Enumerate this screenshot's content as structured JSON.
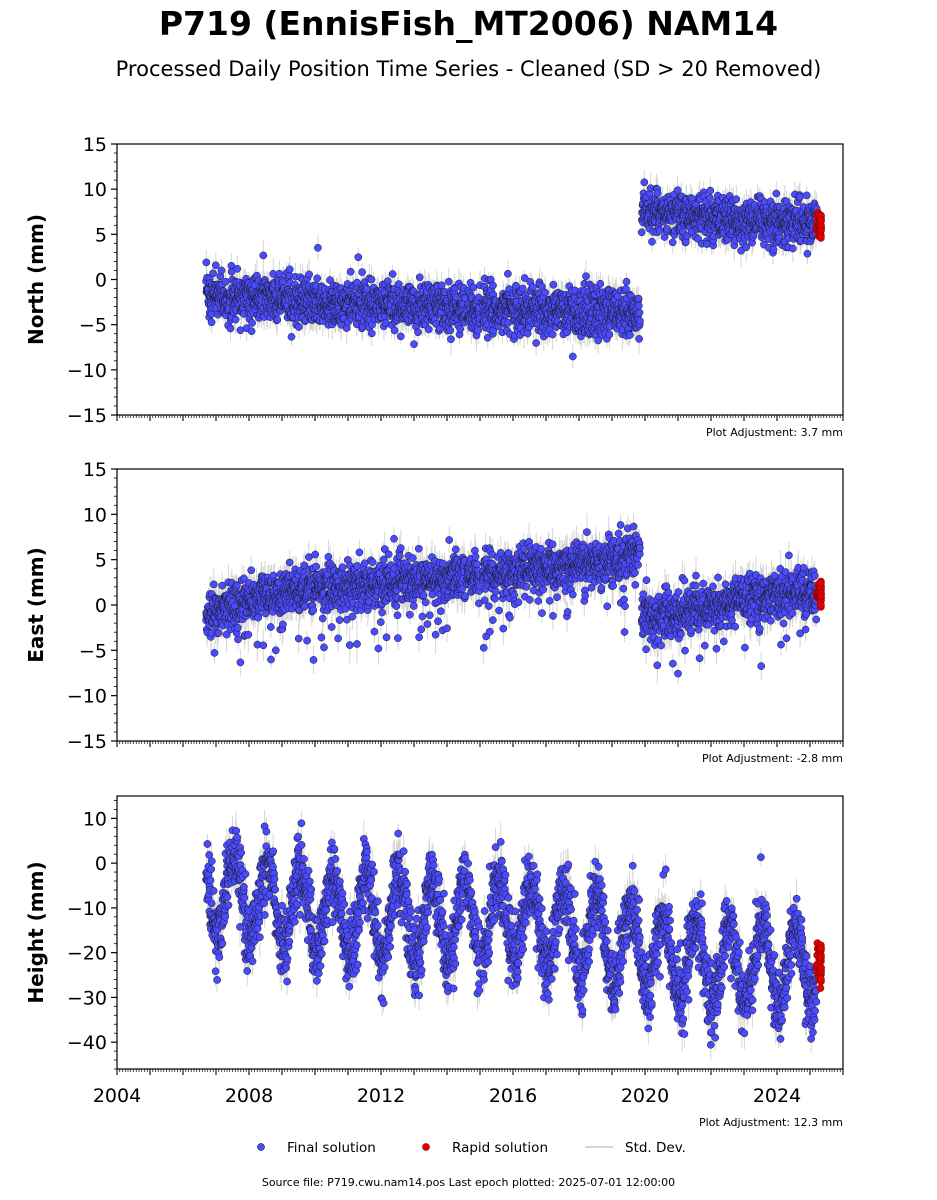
{
  "title": "P719 (EnnisFish_MT2006) NAM14",
  "subtitle": "Processed Daily Position Time Series - Cleaned (SD > 20 Removed)",
  "footer": "Source file: P719.cwu.nam14.pos  Last epoch plotted: 2025-07-01 12:00:00",
  "legend": {
    "final": "Final solution",
    "rapid": "Rapid solution",
    "sd": "Std. Dev."
  },
  "colors": {
    "final": "#4a4aff",
    "rapid": "#e00000",
    "sd": "#c8c8c8",
    "edge": "#1a1a1a"
  },
  "chart_data": [
    {
      "type": "scatter",
      "ylabel": "North (mm)",
      "ylim": [
        -15,
        15
      ],
      "yticks": [
        -15,
        -10,
        -5,
        0,
        5,
        10,
        15
      ],
      "xlim": [
        2004,
        2026
      ],
      "adjustment": "Plot Adjustment: 3.7 mm",
      "series": [
        {
          "name": "Final solution",
          "segments": [
            {
              "x": [
                2006.7,
                2008.0,
                2010.0,
                2012.0,
                2014.0,
                2016.0,
                2018.0,
                2019.85
              ],
              "y": [
                -1.5,
                -2.0,
                -2.5,
                -2.8,
                -3.1,
                -3.4,
                -3.6,
                -3.7
              ],
              "sd": 1.2
            },
            {
              "x": [
                2019.9,
                2021.0,
                2022.5,
                2024.0,
                2025.2
              ],
              "y": [
                7.9,
                7.2,
                6.6,
                6.3,
                6.2
              ],
              "sd": 1.2
            }
          ]
        },
        {
          "name": "Rapid solution",
          "x": [
            2025.2,
            2025.5
          ],
          "y": [
            6.2,
            6.0
          ]
        }
      ]
    },
    {
      "type": "scatter",
      "ylabel": "East (mm)",
      "ylim": [
        -15,
        15
      ],
      "yticks": [
        -15,
        -10,
        -5,
        0,
        5,
        10,
        15
      ],
      "xlim": [
        2004,
        2026
      ],
      "adjustment": "Plot Adjustment: -2.8 mm",
      "series": [
        {
          "name": "Final solution",
          "segments": [
            {
              "x": [
                2006.7,
                2008.0,
                2010.0,
                2012.0,
                2014.0,
                2016.0,
                2018.0,
                2019.85
              ],
              "y": [
                -0.8,
                0.5,
                1.8,
                2.4,
                3.0,
                3.6,
                4.5,
                5.8
              ],
              "sd": 1.4
            },
            {
              "x": [
                2019.9,
                2021.0,
                2022.5,
                2024.0,
                2025.2
              ],
              "y": [
                -1.2,
                -0.8,
                0.3,
                1.2,
                1.6
              ],
              "sd": 1.4
            }
          ]
        },
        {
          "name": "Rapid solution",
          "x": [
            2025.2,
            2025.5
          ],
          "y": [
            1.2,
            1.0
          ]
        }
      ]
    },
    {
      "type": "scatter",
      "ylabel": "Height (mm)",
      "ylim": [
        -46,
        15
      ],
      "yticks": [
        -40,
        -30,
        -20,
        -10,
        0,
        10
      ],
      "xlim": [
        2004,
        2026
      ],
      "xticks": [
        2004,
        2008,
        2012,
        2016,
        2020,
        2024
      ],
      "adjustment": "Plot Adjustment: 12.3 mm",
      "series": [
        {
          "name": "Final solution",
          "segments": [
            {
              "x": [
                2006.7,
                2010.0,
                2014.0,
                2016.0,
                2018.0,
                2020.0,
                2022.0,
                2024.0,
                2025.2
              ],
              "y": [
                -6,
                -11,
                -13,
                -12,
                -16,
                -20,
                -22,
                -23,
                -22
              ],
              "sd": 3.0
            }
          ],
          "annual_amplitude": 9
        },
        {
          "name": "Rapid solution",
          "x": [
            2025.2,
            2025.5
          ],
          "y": [
            -22,
            -24
          ]
        }
      ]
    }
  ]
}
